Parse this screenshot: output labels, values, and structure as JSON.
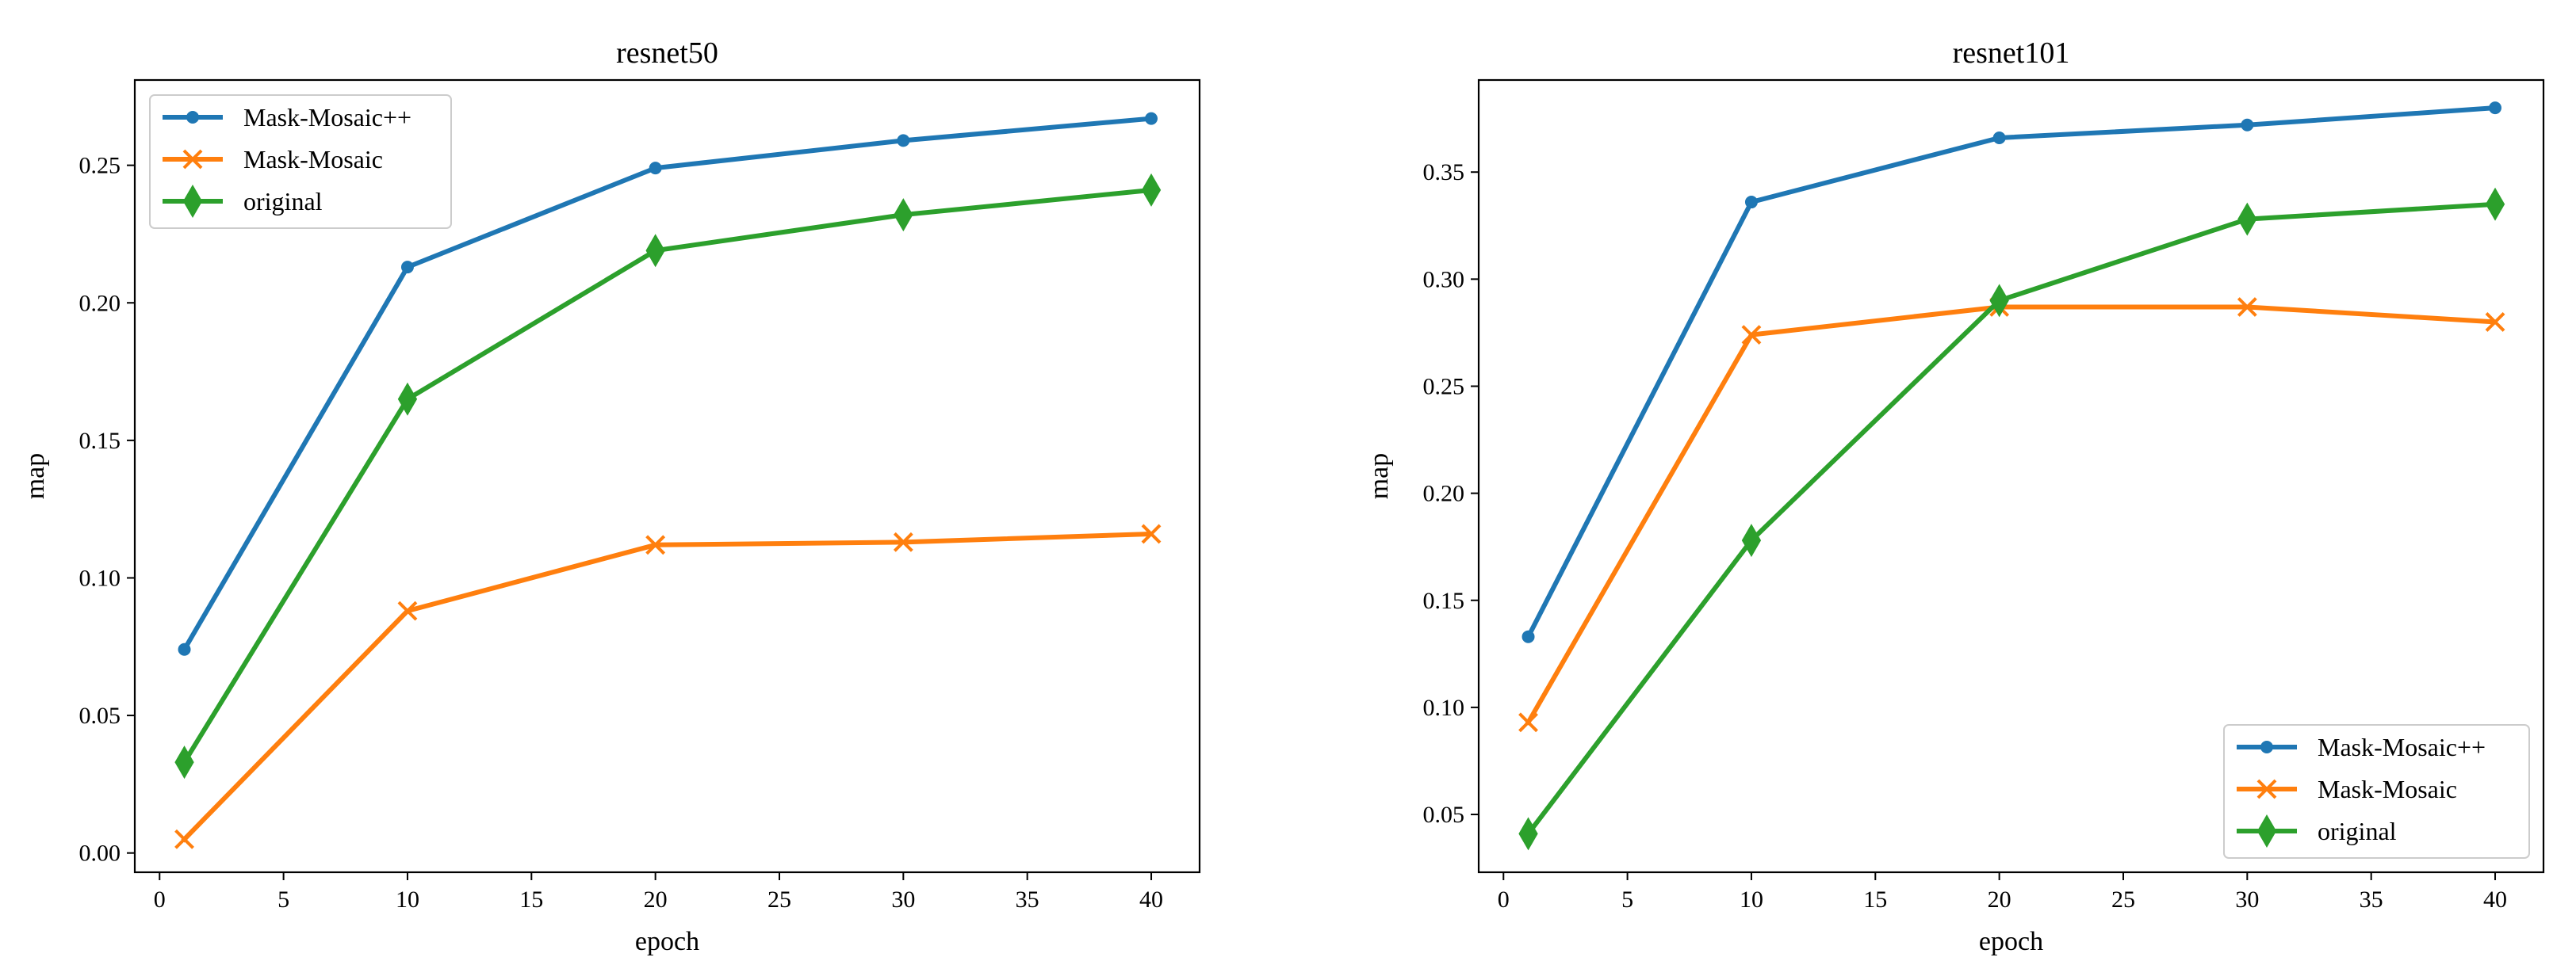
{
  "chart_data": [
    {
      "type": "line",
      "title": "resnet50",
      "xlabel": "epoch",
      "ylabel": "map",
      "xlim": [
        -1,
        41.95
      ],
      "ylim": [
        -0.007,
        0.281
      ],
      "xticks": [
        0,
        5,
        10,
        15,
        20,
        25,
        30,
        35,
        40
      ],
      "yticks": [
        0.0,
        0.05,
        0.1,
        0.15,
        0.2,
        0.25
      ],
      "ytick_labels": [
        "0.00",
        "0.05",
        "0.10",
        "0.15",
        "0.20",
        "0.25"
      ],
      "grid": false,
      "legend_position": "top-left",
      "x": [
        1,
        10,
        20,
        30,
        40
      ],
      "series": [
        {
          "name": "Mask-Mosaic++",
          "color": "#1f77b4",
          "marker": "dot",
          "values": [
            0.074,
            0.213,
            0.249,
            0.259,
            0.267
          ]
        },
        {
          "name": "Mask-Mosaic",
          "color": "#ff7f0e",
          "marker": "x",
          "values": [
            0.005,
            0.088,
            0.112,
            0.113,
            0.116
          ]
        },
        {
          "name": "original",
          "color": "#2ca02c",
          "marker": "thin-diamond",
          "values": [
            0.033,
            0.165,
            0.219,
            0.232,
            0.241
          ]
        }
      ]
    },
    {
      "type": "line",
      "title": "resnet101",
      "xlabel": "epoch",
      "ylabel": "map",
      "xlim": [
        -1,
        41.95
      ],
      "ylim": [
        0.023,
        0.393
      ],
      "xticks": [
        0,
        5,
        10,
        15,
        20,
        25,
        30,
        35,
        40
      ],
      "yticks": [
        0.05,
        0.1,
        0.15,
        0.2,
        0.25,
        0.3,
        0.35
      ],
      "ytick_labels": [
        "0.05",
        "0.10",
        "0.15",
        "0.20",
        "0.25",
        "0.30",
        "0.35"
      ],
      "grid": false,
      "legend_position": "bottom-right",
      "x": [
        1,
        10,
        20,
        30,
        40
      ],
      "series": [
        {
          "name": "Mask-Mosaic++",
          "color": "#1f77b4",
          "marker": "dot",
          "values": [
            0.133,
            0.336,
            0.366,
            0.372,
            0.38
          ]
        },
        {
          "name": "Mask-Mosaic",
          "color": "#ff7f0e",
          "marker": "x",
          "values": [
            0.093,
            0.274,
            0.287,
            0.287,
            0.28
          ]
        },
        {
          "name": "original",
          "color": "#2ca02c",
          "marker": "thin-diamond",
          "values": [
            0.041,
            0.178,
            0.29,
            0.328,
            0.335
          ]
        }
      ]
    }
  ]
}
